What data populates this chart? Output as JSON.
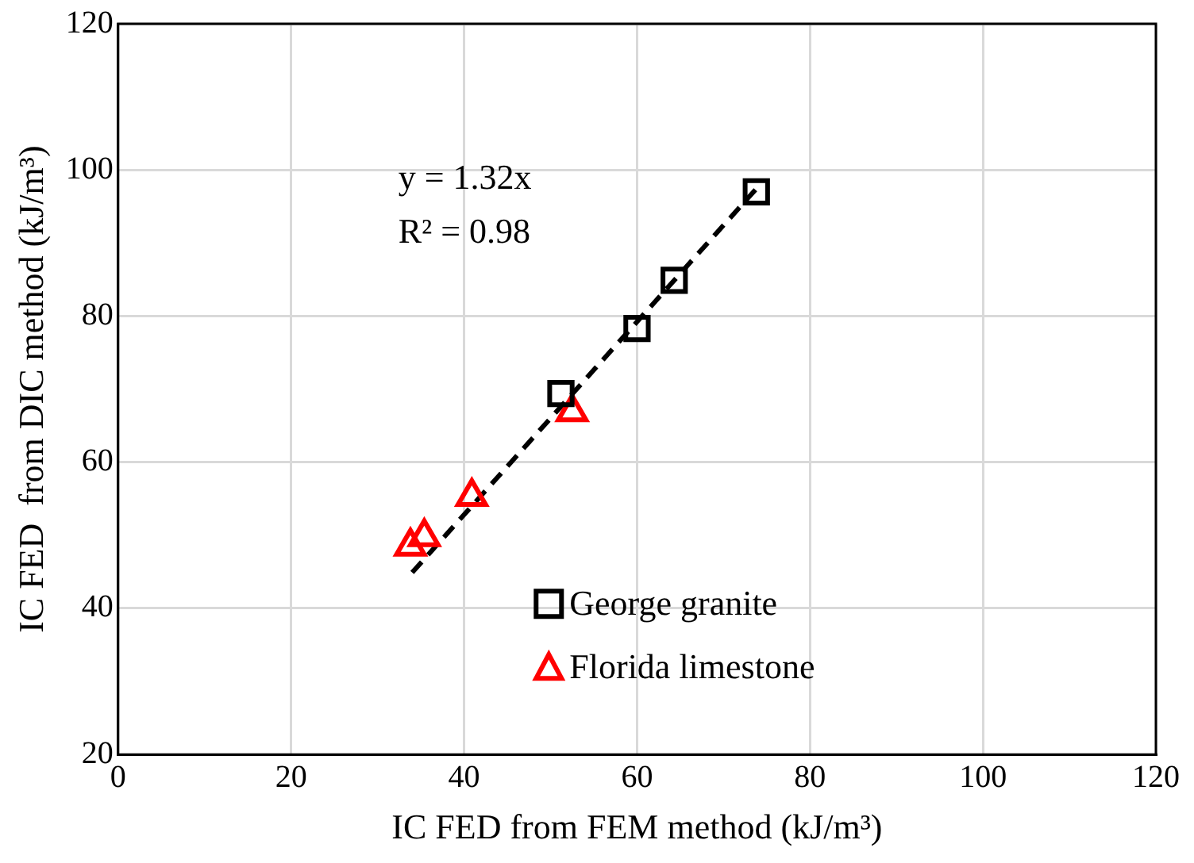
{
  "chart_data": {
    "type": "scatter",
    "xlabel": "IC FED from FEM method (kJ/m³)",
    "ylabel": "IC FED  from DIC method (kJ/m³)",
    "xlim": [
      0,
      120
    ],
    "xticks": [
      0,
      20,
      40,
      60,
      80,
      100,
      120
    ],
    "ylim": [
      20,
      120
    ],
    "yticks": [
      20,
      40,
      60,
      80,
      100,
      120
    ],
    "grid": true,
    "legend": "bottom right",
    "annotations": [
      "y = 1.32x",
      "R² = 0.98"
    ],
    "series": [
      {
        "name": "George granite",
        "color": "#000000",
        "marker": "square",
        "x": [
          73.8,
          64.3,
          60.0,
          51.2
        ],
        "values": [
          97.0,
          84.9,
          78.3,
          69.4
        ]
      },
      {
        "name": "Florida limestone",
        "color": "#ff0000",
        "marker": "triangle",
        "x": [
          52.5,
          40.9,
          35.4,
          33.8
        ],
        "values": [
          66.9,
          55.3,
          49.8,
          48.5
        ]
      },
      {
        "type": "line",
        "color": "#000000",
        "line_style": "dashed",
        "marker": "none",
        "x": [
          34,
          74
        ],
        "values": [
          44.9,
          97.7
        ]
      }
    ]
  }
}
